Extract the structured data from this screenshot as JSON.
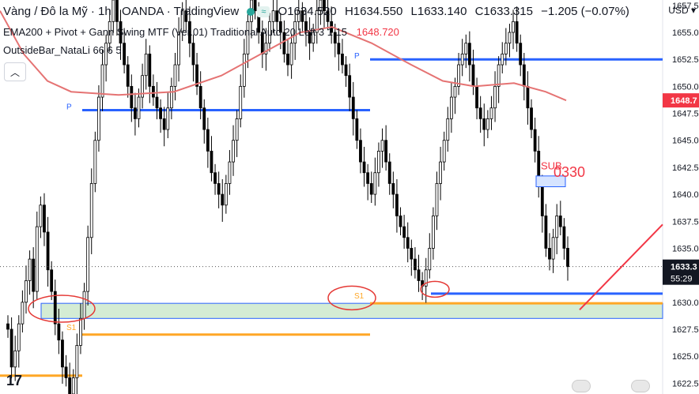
{
  "header": {
    "symbol": "Vàng / Đô la Mỹ · 1h · OANDA · TradingView",
    "ohlc": {
      "o": "O1634.520",
      "h": "H1634.550",
      "l": "L1633.140",
      "c": "C1633.315",
      "chg": "−1.205 (−0.07%)"
    },
    "currency": "USD",
    "indicator1": "EMA200 + Pivot + Gann Swing MTF (Ver.01) Traditional Auto 20 Left 3 1 15",
    "indicator1_value": "1648.720",
    "indicator2": "OutsideBar_NataLi 66 6 5",
    "collapse_icon": "chevron-up-icon",
    "logo": "17"
  },
  "chart_data": {
    "type": "candlestick",
    "ylim": [
      1621.5,
      1658.0
    ],
    "y_ticks": [
      1622.5,
      1625.0,
      1627.5,
      1630.0,
      1632.5,
      1635.0,
      1637.5,
      1640.0,
      1642.5,
      1645.0,
      1647.5,
      1650.0,
      1652.5,
      1655.0,
      1657.5
    ],
    "price_labels": {
      "ema": {
        "value": 1648.7,
        "text": "1648.7",
        "color": "#f23645"
      },
      "last": {
        "value": 1633.3,
        "text": "1633.3",
        "countdown": "55:29"
      }
    },
    "levels": [
      {
        "label": "P",
        "value": 1647.8,
        "color": "#2962ff"
      },
      {
        "label": "P",
        "value": 1652.5,
        "color": "#2962ff"
      },
      {
        "label": "S1",
        "value": 1627.0,
        "color": "#ffa726"
      },
      {
        "label": "S1",
        "value": 1629.9,
        "color": "#ffa726"
      },
      {
        "label": "",
        "value": 1630.8,
        "color": "#2962ff"
      },
      {
        "label": "",
        "value": 1623.2,
        "color": "#ffa726"
      }
    ],
    "zone": {
      "from": 1628.5,
      "to": 1629.9,
      "fill": "#d4ecd4",
      "stroke": "#2962ff"
    },
    "small_box": {
      "from": 1640.7,
      "to": 1641.7,
      "fill": "#d6e4ff",
      "stroke": "#2962ff"
    },
    "annotation": {
      "text": "SUB",
      "overlap_text": "0330",
      "color": "#f23645"
    },
    "ema_color": "#e57373",
    "candles_close": [
      1627.5,
      1624,
      1625.5,
      1628,
      1630,
      1632,
      1634,
      1631,
      1637,
      1639,
      1636.5,
      1633,
      1631,
      1628,
      1626.5,
      1624,
      1623,
      1621.5,
      1623,
      1626,
      1628.5,
      1631,
      1636,
      1641,
      1645,
      1649,
      1652,
      1654,
      1656,
      1658,
      1656,
      1654,
      1652,
      1650,
      1648,
      1647,
      1649,
      1651,
      1653,
      1650,
      1649,
      1648,
      1647,
      1646,
      1648,
      1650,
      1652,
      1655,
      1657,
      1656,
      1654,
      1652,
      1650,
      1648,
      1646,
      1644,
      1642,
      1641,
      1640,
      1639,
      1641,
      1643,
      1645,
      1647,
      1650,
      1653,
      1656,
      1658,
      1657,
      1655,
      1653,
      1654,
      1656,
      1657,
      1656,
      1655,
      1653,
      1652,
      1654,
      1656,
      1657,
      1656,
      1655,
      1654,
      1655,
      1657,
      1658,
      1657,
      1656,
      1655,
      1654,
      1653,
      1652,
      1651,
      1649,
      1647,
      1645,
      1643,
      1642,
      1641,
      1640,
      1642,
      1644,
      1645,
      1643,
      1641,
      1640,
      1638,
      1637,
      1636,
      1635,
      1634,
      1633,
      1632,
      1631.5,
      1633,
      1635,
      1638,
      1641,
      1643,
      1645,
      1647,
      1649,
      1650,
      1652,
      1653,
      1654,
      1652,
      1650,
      1648,
      1647,
      1646,
      1647,
      1648,
      1650,
      1652,
      1653,
      1654,
      1655,
      1656,
      1654,
      1652,
      1650,
      1648,
      1646,
      1644,
      1641,
      1638,
      1635,
      1634,
      1636,
      1638,
      1637,
      1635,
      1633.3
    ]
  },
  "events": [
    "us-flag-icon",
    "us-flag-icon"
  ]
}
